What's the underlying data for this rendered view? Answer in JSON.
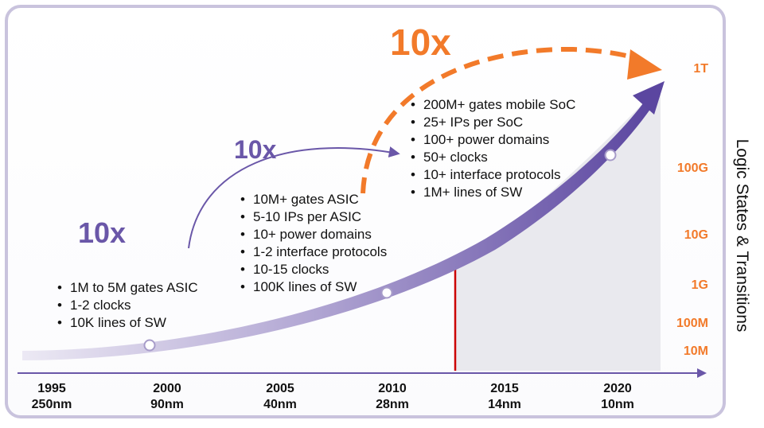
{
  "multipliers": [
    "10x",
    "10x",
    "10x"
  ],
  "eras": [
    {
      "bullets": [
        "1M to 5M gates ASIC",
        "1-2 clocks",
        "10K lines of SW"
      ]
    },
    {
      "bullets": [
        "10M+ gates ASIC",
        "5-10 IPs per ASIC",
        "10+ power domains",
        "1-2 interface protocols",
        "10-15 clocks",
        "100K lines of SW"
      ]
    },
    {
      "bullets": [
        "200M+ gates mobile SoC",
        "25+ IPs per SoC",
        "100+ power domains",
        "50+ clocks",
        "10+ interface protocols",
        "1M+ lines of SW"
      ]
    }
  ],
  "y_axis": {
    "title": "Logic States  &  Transitions",
    "labels": [
      "1T",
      "100G",
      "10G",
      "1G",
      "100M",
      "10M"
    ]
  },
  "x_axis": {
    "ticks": [
      {
        "year": "1995",
        "node": "250nm"
      },
      {
        "year": "2000",
        "node": "90nm"
      },
      {
        "year": "2005",
        "node": "40nm"
      },
      {
        "year": "2010",
        "node": "28nm"
      },
      {
        "year": "2015",
        "node": "14nm"
      },
      {
        "year": "2020",
        "node": "10nm"
      }
    ]
  },
  "colors": {
    "purple": "#6a57a8",
    "orange": "#f27a2a",
    "red_marker": "#cc0000",
    "shade": "#e9e9ee",
    "frame": "#c9c3dd"
  }
}
